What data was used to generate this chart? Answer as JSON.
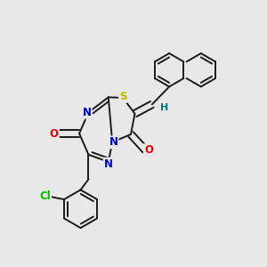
{
  "bg_color": "#e8e8e8",
  "bond_color": "#1a1a1a",
  "bond_width": 1.4,
  "dbo": 0.013,
  "atom_colors": {
    "N": "#0000cc",
    "O": "#ee0000",
    "S": "#bbbb00",
    "Cl": "#00bb00",
    "H": "#007777",
    "C": "#1a1a1a"
  },
  "fs": 8.5
}
